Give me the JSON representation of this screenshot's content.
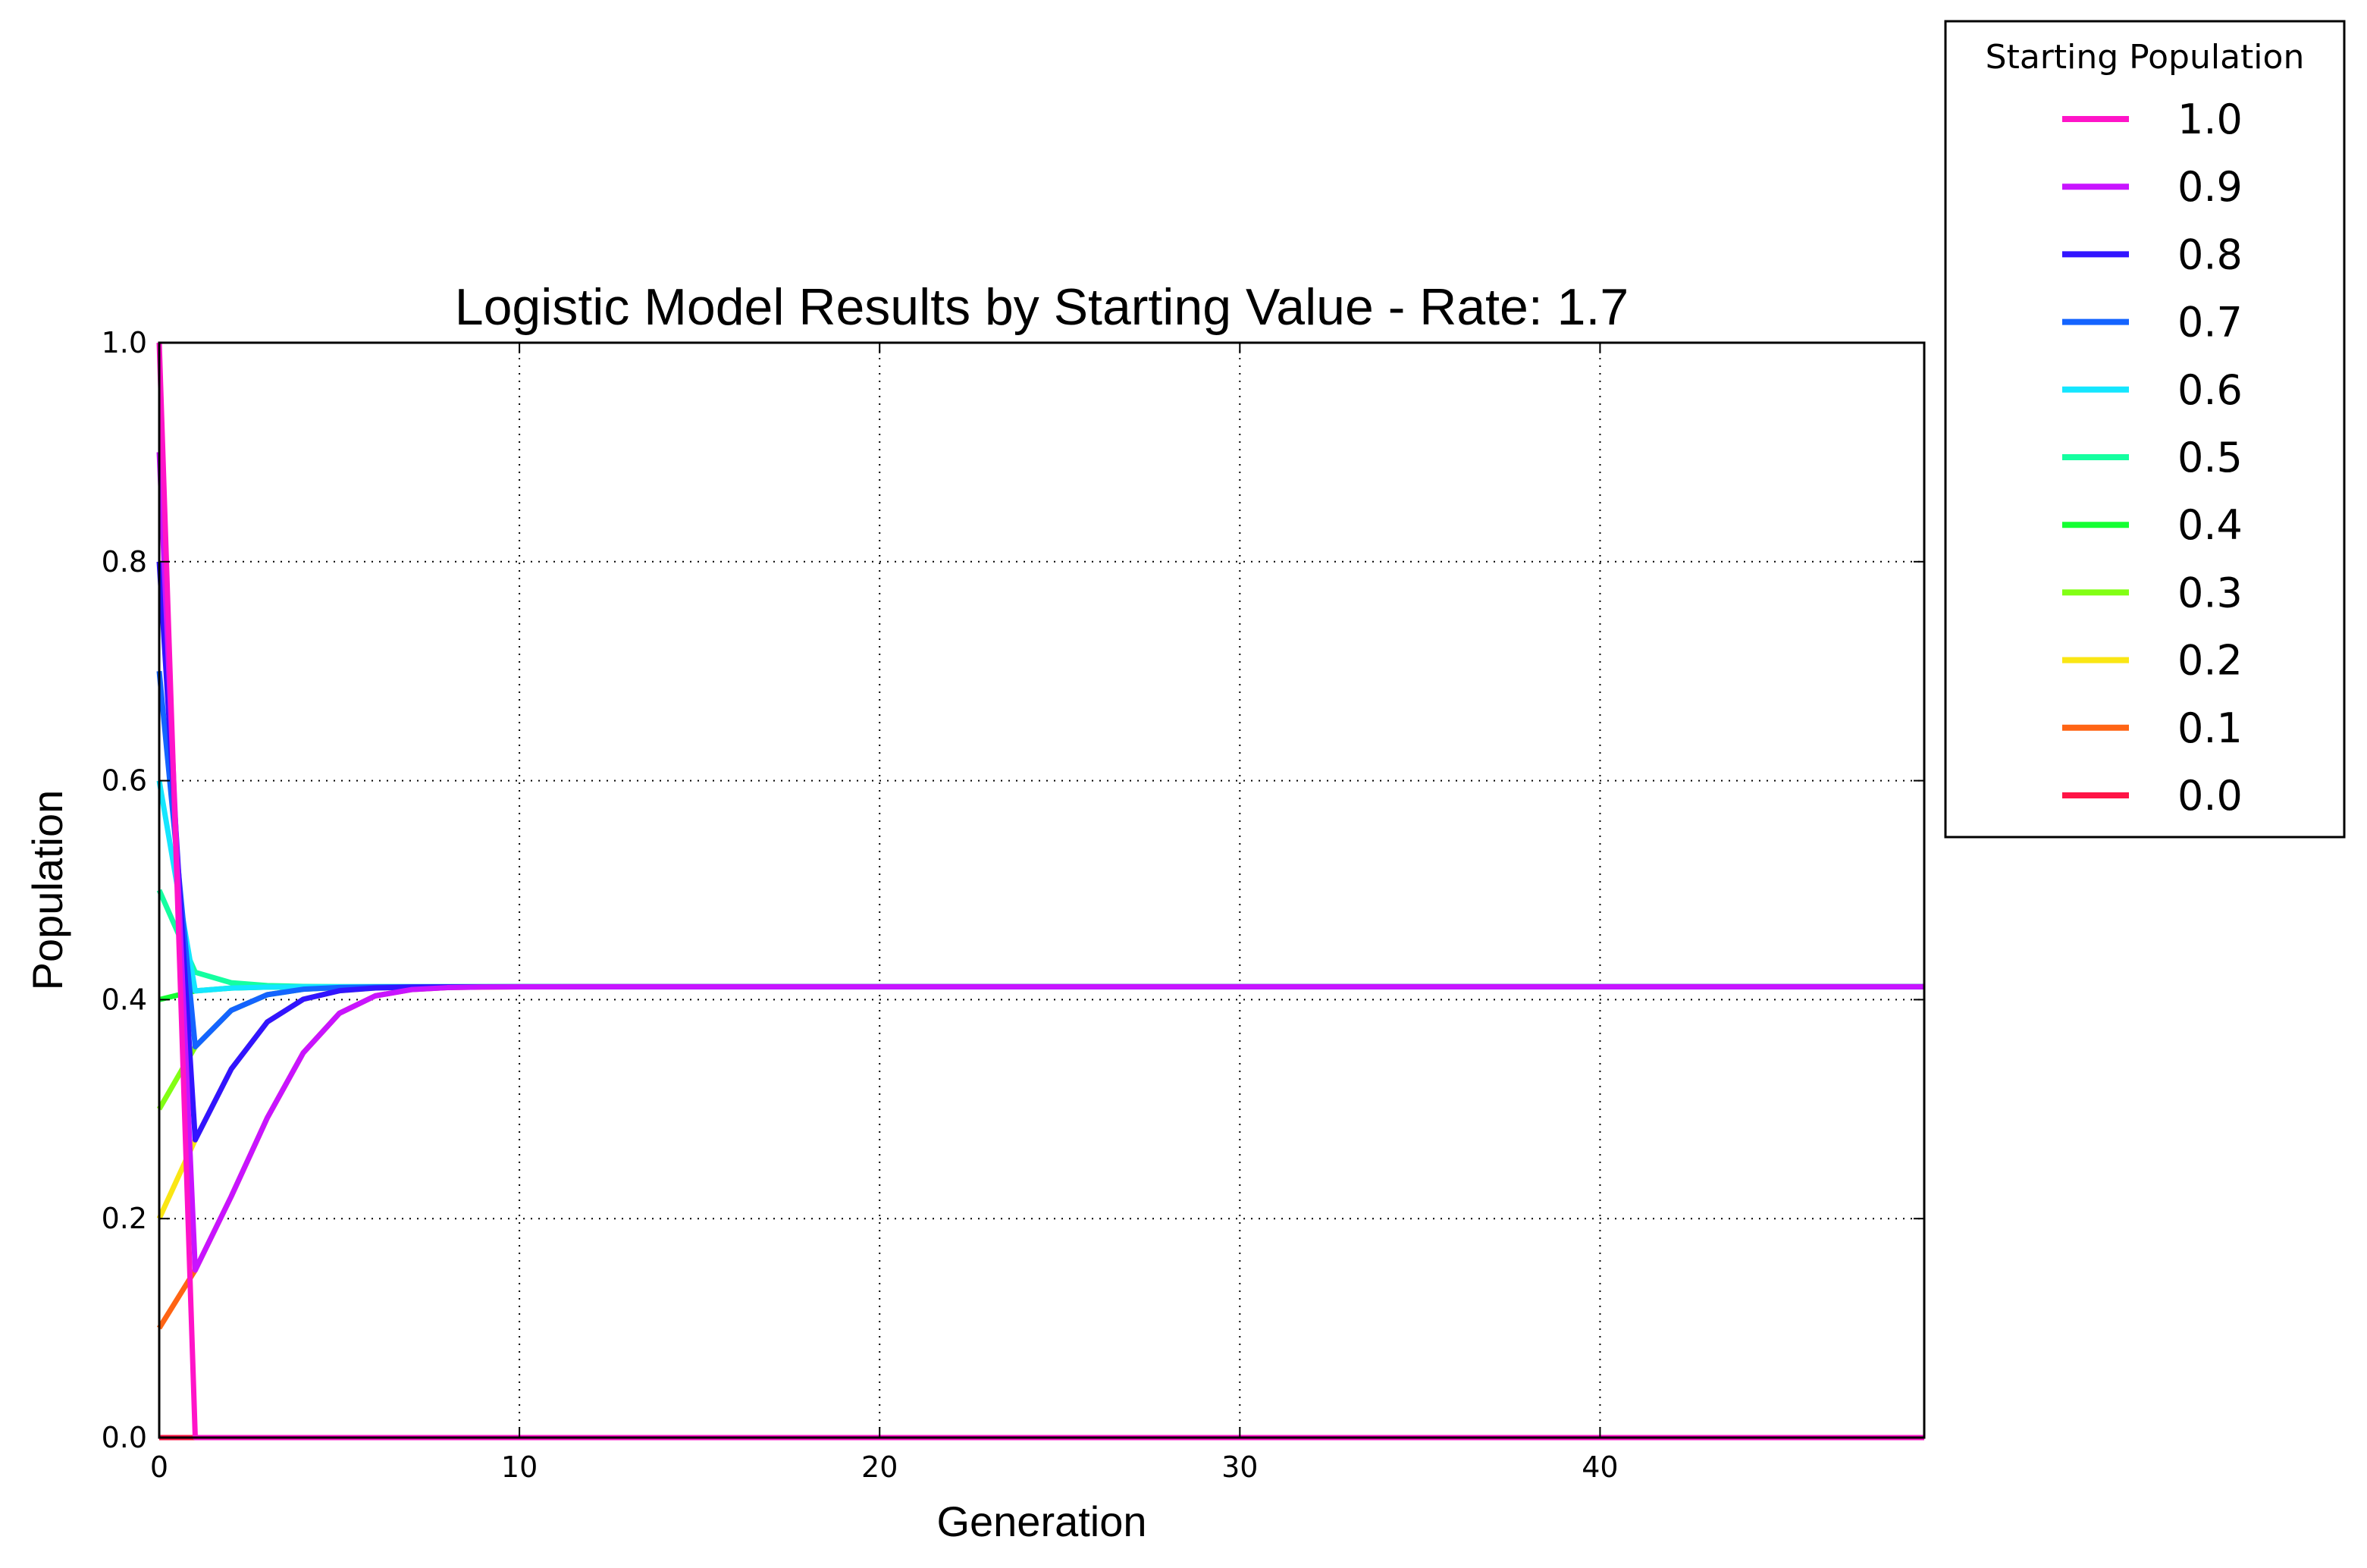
{
  "chart_data": {
    "type": "line",
    "title": "Logistic Model Results by Starting Value - Rate: 1.7",
    "xlabel": "Generation",
    "ylabel": "Population",
    "xlim": [
      0,
      49
    ],
    "ylim": [
      0,
      1
    ],
    "xticks": [
      0,
      10,
      20,
      30,
      40
    ],
    "xtick_labels": [
      "0",
      "10",
      "20",
      "30",
      "40"
    ],
    "yticks": [
      0,
      0.2,
      0.4,
      0.6,
      0.8,
      1.0
    ],
    "ytick_labels": [
      "0.0",
      "0.2",
      "0.4",
      "0.6",
      "0.8",
      "1.0"
    ],
    "grid": true,
    "legend": {
      "title": "Starting Population",
      "placement": "outside-top-right"
    },
    "rate": 1.7,
    "generations": 50,
    "series": [
      {
        "name": "1.0",
        "color": "#ff14c8",
        "start": 1.0
      },
      {
        "name": "0.9",
        "color": "#c814ff",
        "start": 0.9
      },
      {
        "name": "0.8",
        "color": "#3214ff",
        "start": 0.8
      },
      {
        "name": "0.7",
        "color": "#1464ff",
        "start": 0.7
      },
      {
        "name": "0.6",
        "color": "#14e6ff",
        "start": 0.6
      },
      {
        "name": "0.5",
        "color": "#14ffa0",
        "start": 0.5
      },
      {
        "name": "0.4",
        "color": "#14ff32",
        "start": 0.4
      },
      {
        "name": "0.3",
        "color": "#82ff14",
        "start": 0.3
      },
      {
        "name": "0.2",
        "color": "#fae614",
        "start": 0.2
      },
      {
        "name": "0.1",
        "color": "#ff6414",
        "start": 0.1
      },
      {
        "name": "0.0",
        "color": "#ff1446",
        "start": 0.0
      }
    ]
  }
}
